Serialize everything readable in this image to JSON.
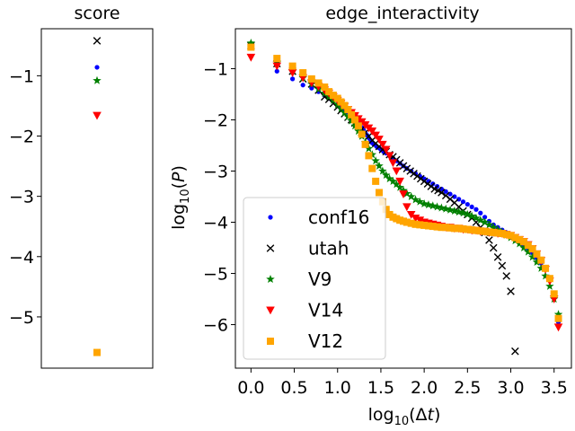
{
  "chart_data": [
    {
      "type": "scatter",
      "title": "score",
      "xlabel": "",
      "ylabel": "",
      "ylim": [
        -5.85,
        -0.22
      ],
      "yticks": [
        -1,
        -2,
        -3,
        -4,
        -5
      ],
      "ytick_labels": [
        "−1",
        "−2",
        "−3",
        "−4",
        "−5"
      ],
      "points": [
        {
          "series": "conf16",
          "y": -0.86
        },
        {
          "series": "utah",
          "y": -0.42
        },
        {
          "series": "V9",
          "y": -1.08
        },
        {
          "series": "V14",
          "y": -1.66
        },
        {
          "series": "V12",
          "y": -5.59
        }
      ]
    },
    {
      "type": "scatter",
      "title": "edge_interactivity",
      "xlabel": "log₁₀(Δt)",
      "ylabel": "log₁₀(P)",
      "xlim": [
        -0.18,
        3.7
      ],
      "ylim": [
        -6.85,
        -0.22
      ],
      "xticks": [
        0.0,
        0.5,
        1.0,
        1.5,
        2.0,
        2.5,
        3.0,
        3.5
      ],
      "xtick_labels": [
        "0.0",
        "0.5",
        "1.0",
        "1.5",
        "2.0",
        "2.5",
        "3.0",
        "3.5"
      ],
      "yticks": [
        -1,
        -2,
        -3,
        -4,
        -5,
        -6
      ],
      "ytick_labels": [
        "−1",
        "−2",
        "−3",
        "−4",
        "−5",
        "−6"
      ],
      "legend_position": "lower-left",
      "series": [
        {
          "name": "conf16",
          "color": "#0000ff",
          "marker": "dot",
          "x": [
            0.0,
            0.3,
            0.48,
            0.6,
            0.7,
            0.78,
            0.85,
            0.9,
            0.95,
            1.0,
            1.04,
            1.08,
            1.11,
            1.15,
            1.18,
            1.2,
            1.23,
            1.26,
            1.28,
            1.3,
            1.32,
            1.34,
            1.36,
            1.38,
            1.4,
            1.42,
            1.45,
            1.48,
            1.5,
            1.53,
            1.56,
            1.6,
            1.64,
            1.68,
            1.72,
            1.76,
            1.8,
            1.85,
            1.9,
            1.95,
            2.0,
            2.05,
            2.1,
            2.15,
            2.2,
            2.25,
            2.3,
            2.35,
            2.4,
            2.45,
            2.5,
            2.55,
            2.6,
            2.65,
            2.7,
            2.75,
            2.8,
            2.85,
            2.9,
            2.95,
            3.0,
            3.05,
            3.1,
            3.15,
            3.2,
            3.25,
            3.3,
            3.35,
            3.4,
            3.45,
            3.5,
            3.55
          ],
          "y": [
            -0.6,
            -1.05,
            -1.2,
            -1.32,
            -1.38,
            -1.45,
            -1.52,
            -1.58,
            -1.63,
            -1.7,
            -1.75,
            -1.8,
            -1.85,
            -1.9,
            -1.95,
            -2.0,
            -2.05,
            -2.1,
            -2.15,
            -2.2,
            -2.25,
            -2.3,
            -2.35,
            -2.4,
            -2.45,
            -2.48,
            -2.52,
            -2.55,
            -2.58,
            -2.62,
            -2.65,
            -2.7,
            -2.75,
            -2.8,
            -2.85,
            -2.9,
            -2.95,
            -3.0,
            -3.05,
            -3.1,
            -3.15,
            -3.2,
            -3.25,
            -3.3,
            -3.35,
            -3.4,
            -3.45,
            -3.5,
            -3.55,
            -3.6,
            -3.65,
            -3.7,
            -3.75,
            -3.82,
            -3.9,
            -3.98,
            -4.05,
            -4.1,
            -4.15,
            -4.2,
            -4.25,
            -4.3,
            -4.38,
            -4.45,
            -4.52,
            -4.6,
            -4.7,
            -4.8,
            -4.92,
            -5.1,
            -5.4,
            -5.95
          ]
        },
        {
          "name": "utah",
          "color": "#000000",
          "marker": "x",
          "x": [
            0.0,
            0.3,
            0.48,
            0.6,
            0.7,
            0.78,
            0.85,
            0.9,
            0.95,
            1.0,
            1.04,
            1.08,
            1.12,
            1.16,
            1.2,
            1.24,
            1.28,
            1.32,
            1.36,
            1.4,
            1.44,
            1.48,
            1.52,
            1.56,
            1.6,
            1.64,
            1.68,
            1.72,
            1.76,
            1.8,
            1.84,
            1.88,
            1.92,
            1.96,
            2.0,
            2.04,
            2.08,
            2.12,
            2.16,
            2.2,
            2.25,
            2.3,
            2.35,
            2.4,
            2.45,
            2.5,
            2.55,
            2.6,
            2.65,
            2.7,
            2.75,
            2.8,
            2.85,
            2.9,
            2.95,
            3.0,
            3.05
          ],
          "y": [
            -0.55,
            -0.9,
            -1.05,
            -1.2,
            -1.3,
            -1.42,
            -1.55,
            -1.6,
            -1.68,
            -1.75,
            -1.82,
            -1.88,
            -1.95,
            -2.0,
            -2.06,
            -2.12,
            -2.18,
            -2.25,
            -2.32,
            -2.4,
            -2.46,
            -2.52,
            -2.58,
            -2.62,
            -2.68,
            -2.72,
            -2.78,
            -2.84,
            -2.9,
            -2.95,
            -3.0,
            -3.05,
            -3.1,
            -3.15,
            -3.2,
            -3.25,
            -3.3,
            -3.35,
            -3.38,
            -3.42,
            -3.48,
            -3.55,
            -3.62,
            -3.7,
            -3.78,
            -3.85,
            -3.92,
            -4.0,
            -4.1,
            -4.2,
            -4.35,
            -4.5,
            -4.68,
            -4.85,
            -5.05,
            -5.35,
            -6.52
          ]
        },
        {
          "name": "V9",
          "color": "#008000",
          "marker": "star",
          "x": [
            0.0,
            0.3,
            0.48,
            0.6,
            0.7,
            0.78,
            0.85,
            0.9,
            0.95,
            1.0,
            1.04,
            1.08,
            1.12,
            1.16,
            1.2,
            1.24,
            1.28,
            1.32,
            1.36,
            1.4,
            1.44,
            1.48,
            1.52,
            1.56,
            1.6,
            1.64,
            1.68,
            1.72,
            1.76,
            1.8,
            1.85,
            1.9,
            1.95,
            2.0,
            2.05,
            2.1,
            2.15,
            2.2,
            2.25,
            2.3,
            2.35,
            2.4,
            2.45,
            2.5,
            2.55,
            2.6,
            2.65,
            2.7,
            2.75,
            2.8,
            2.85,
            2.9,
            2.95,
            3.0,
            3.05,
            3.1,
            3.15,
            3.2,
            3.25,
            3.3,
            3.35,
            3.4,
            3.45,
            3.5,
            3.55
          ],
          "y": [
            -0.5,
            -0.88,
            -1.05,
            -1.18,
            -1.3,
            -1.4,
            -1.48,
            -1.55,
            -1.62,
            -1.7,
            -1.78,
            -1.86,
            -1.94,
            -2.02,
            -2.12,
            -2.22,
            -2.32,
            -2.44,
            -2.56,
            -2.68,
            -2.8,
            -2.9,
            -3.0,
            -3.08,
            -3.15,
            -3.2,
            -3.26,
            -3.32,
            -3.38,
            -3.44,
            -3.5,
            -3.56,
            -3.6,
            -3.64,
            -3.66,
            -3.68,
            -3.7,
            -3.72,
            -3.74,
            -3.76,
            -3.78,
            -3.8,
            -3.82,
            -3.85,
            -3.88,
            -3.92,
            -3.96,
            -4.0,
            -4.05,
            -4.1,
            -4.15,
            -4.2,
            -4.25,
            -4.3,
            -4.36,
            -4.42,
            -4.5,
            -4.58,
            -4.68,
            -4.78,
            -4.9,
            -5.05,
            -5.25,
            -5.5,
            -5.8
          ]
        },
        {
          "name": "V14",
          "color": "#ff0000",
          "marker": "triangle-down",
          "x": [
            0.0,
            0.3,
            0.48,
            0.6,
            0.7,
            0.78,
            0.85,
            0.9,
            0.95,
            1.0,
            1.04,
            1.08,
            1.12,
            1.16,
            1.2,
            1.24,
            1.28,
            1.32,
            1.36,
            1.4,
            1.44,
            1.48,
            1.52,
            1.56,
            1.6,
            1.64,
            1.68,
            1.72,
            1.76,
            1.8,
            1.85,
            1.9,
            1.95,
            2.0,
            2.05,
            2.1,
            2.15,
            2.2,
            2.25,
            2.3,
            2.35,
            2.4,
            2.45,
            2.5,
            2.55,
            2.6,
            2.65,
            2.7,
            2.75,
            2.8,
            2.85,
            2.9,
            2.95,
            3.0,
            3.05,
            3.1,
            3.15,
            3.2,
            3.25,
            3.3,
            3.35,
            3.4,
            3.45,
            3.5,
            3.55
          ],
          "y": [
            -0.78,
            -0.95,
            -1.08,
            -1.18,
            -1.28,
            -1.35,
            -1.42,
            -1.48,
            -1.55,
            -1.62,
            -1.68,
            -1.74,
            -1.8,
            -1.86,
            -1.92,
            -1.98,
            -2.04,
            -2.1,
            -2.16,
            -2.22,
            -2.3,
            -2.38,
            -2.48,
            -2.58,
            -2.7,
            -2.84,
            -3.0,
            -3.2,
            -3.45,
            -3.7,
            -3.85,
            -3.92,
            -3.96,
            -4.0,
            -4.02,
            -4.04,
            -4.06,
            -4.08,
            -4.1,
            -4.1,
            -4.12,
            -4.12,
            -4.14,
            -4.14,
            -4.16,
            -4.16,
            -4.18,
            -4.18,
            -4.2,
            -4.2,
            -4.22,
            -4.22,
            -4.24,
            -4.26,
            -4.3,
            -4.34,
            -4.38,
            -4.44,
            -4.52,
            -4.62,
            -4.75,
            -4.92,
            -5.15,
            -5.5,
            -6.05
          ]
        },
        {
          "name": "V12",
          "color": "#ffa500",
          "marker": "square",
          "x": [
            0.0,
            0.3,
            0.48,
            0.6,
            0.7,
            0.78,
            0.85,
            0.9,
            0.95,
            1.0,
            1.04,
            1.08,
            1.12,
            1.16,
            1.2,
            1.24,
            1.28,
            1.32,
            1.36,
            1.4,
            1.44,
            1.48,
            1.52,
            1.56,
            1.6,
            1.64,
            1.68,
            1.72,
            1.76,
            1.8,
            1.85,
            1.9,
            1.95,
            2.0,
            2.05,
            2.1,
            2.15,
            2.2,
            2.25,
            2.3,
            2.35,
            2.4,
            2.45,
            2.5,
            2.55,
            2.6,
            2.65,
            2.7,
            2.75,
            2.8,
            2.85,
            2.9,
            2.95,
            3.0,
            3.05,
            3.1,
            3.15,
            3.2,
            3.25,
            3.3,
            3.35,
            3.4,
            3.45,
            3.5,
            3.55
          ],
          "y": [
            -0.58,
            -0.8,
            -0.95,
            -1.08,
            -1.2,
            -1.28,
            -1.36,
            -1.45,
            -1.52,
            -1.58,
            -1.65,
            -1.72,
            -1.8,
            -1.9,
            -2.0,
            -2.12,
            -2.28,
            -2.48,
            -2.7,
            -2.95,
            -3.2,
            -3.42,
            -3.6,
            -3.75,
            -3.85,
            -3.9,
            -3.93,
            -3.96,
            -3.98,
            -4.0,
            -4.02,
            -4.04,
            -4.05,
            -4.06,
            -4.07,
            -4.08,
            -4.09,
            -4.1,
            -4.1,
            -4.11,
            -4.12,
            -4.12,
            -4.13,
            -4.14,
            -4.15,
            -4.16,
            -4.17,
            -4.18,
            -4.19,
            -4.2,
            -4.21,
            -4.22,
            -4.24,
            -4.26,
            -4.3,
            -4.34,
            -4.38,
            -4.45,
            -4.52,
            -4.62,
            -4.74,
            -4.9,
            -5.1,
            -5.4,
            -5.88
          ]
        }
      ]
    }
  ]
}
